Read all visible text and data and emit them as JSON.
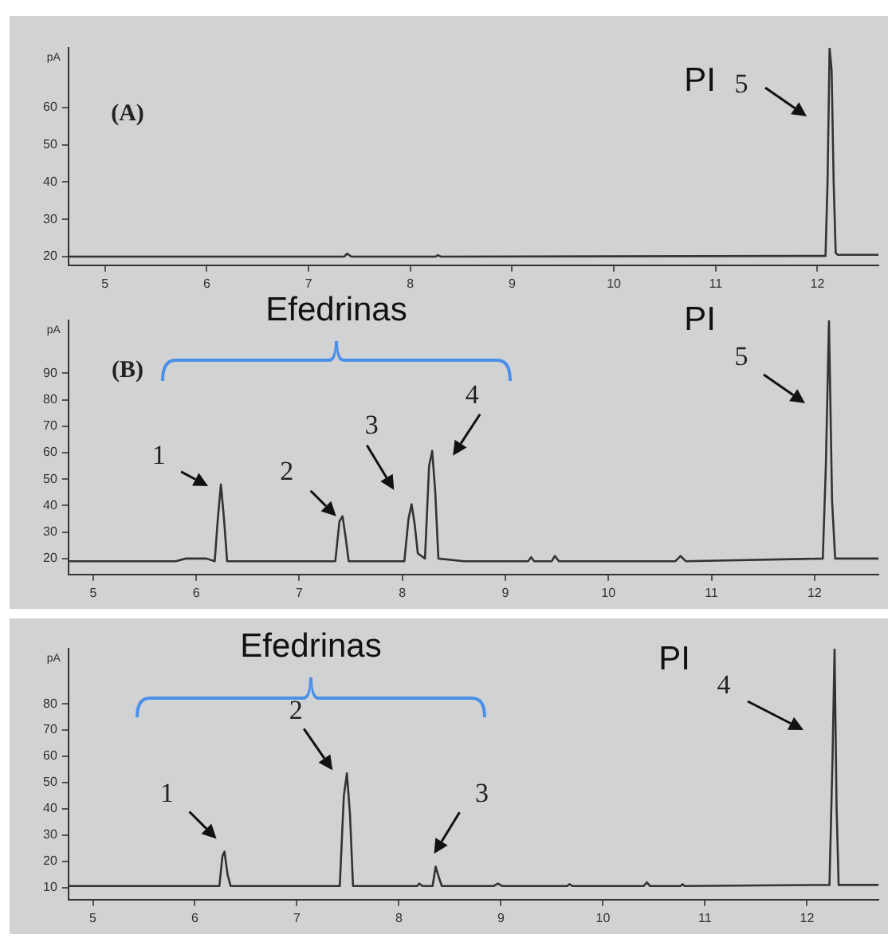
{
  "chart_data": [
    {
      "type": "line",
      "ylabel": "pA",
      "color": "#333333",
      "marker": "none",
      "grid": false,
      "x": [
        4.64,
        7.35,
        7.38,
        7.42,
        8.25,
        8.27,
        8.3,
        12.08,
        12.1,
        12.12,
        12.14,
        12.16,
        12.18,
        12.2,
        12.6
      ],
      "values": [
        20,
        20,
        20.8,
        20,
        20,
        20.4,
        20,
        20.2,
        40,
        76,
        70,
        40,
        21,
        20.5,
        20.5
      ],
      "xlim": [
        4.64,
        12.6
      ],
      "xticks": [
        5,
        6,
        7,
        8,
        9,
        10,
        11,
        12
      ],
      "ylim": [
        17.7,
        76
      ],
      "yticks": [
        20,
        30,
        40,
        50,
        60
      ],
      "annotations": [
        "(A)",
        "PI",
        "5"
      ]
    },
    {
      "type": "line",
      "ylabel": "pA",
      "color": "#333333",
      "marker": "none",
      "grid": false,
      "x": [
        4.76,
        5.8,
        5.9,
        6.1,
        6.18,
        6.21,
        6.24,
        6.27,
        6.3,
        7.35,
        7.39,
        7.42,
        7.45,
        7.48,
        8.02,
        8.06,
        8.09,
        8.12,
        8.15,
        8.22,
        8.26,
        8.29,
        8.32,
        8.35,
        8.6,
        9.22,
        9.25,
        9.28,
        9.45,
        9.48,
        9.52,
        10.65,
        10.7,
        10.75,
        12.08,
        12.11,
        12.14,
        12.17,
        12.2,
        12.62
      ],
      "values": [
        19,
        19,
        20,
        20,
        19,
        35,
        48,
        35,
        19,
        19,
        34,
        36,
        28,
        19,
        19,
        35,
        40.5,
        33,
        22,
        20,
        55,
        60.7,
        45,
        20,
        19,
        19,
        20.5,
        19,
        19,
        21,
        19,
        19,
        21,
        19,
        20,
        55,
        110,
        42,
        20,
        20
      ],
      "xlim": [
        4.76,
        12.62
      ],
      "xticks": [
        5,
        6,
        7,
        8,
        9,
        10,
        11,
        12
      ],
      "ylim": [
        14,
        110
      ],
      "yticks": [
        20,
        30,
        40,
        50,
        60,
        70,
        80,
        90
      ],
      "annotations": [
        "(B)",
        "Efedrinas",
        "PI",
        {
          "text": "1",
          "x": 6.24,
          "y": 48
        },
        {
          "text": "2",
          "x": 7.42,
          "y": 36
        },
        {
          "text": "3",
          "x": 8.09,
          "y": 40.5
        },
        {
          "text": "4",
          "x": 8.29,
          "y": 60.7
        },
        "5"
      ]
    },
    {
      "type": "line",
      "ylabel": "pA",
      "color": "#333333",
      "marker": "none",
      "grid": false,
      "x": [
        4.76,
        6.24,
        6.27,
        6.29,
        6.32,
        6.35,
        7.42,
        7.46,
        7.49,
        7.52,
        7.55,
        8.18,
        8.2,
        8.23,
        8.33,
        8.36,
        8.39,
        8.42,
        8.93,
        8.97,
        9.01,
        9.65,
        9.67,
        9.7,
        10.4,
        10.43,
        10.46,
        10.76,
        10.78,
        10.8,
        12.22,
        12.25,
        12.27,
        12.29,
        12.31,
        12.7
      ],
      "values": [
        10.6,
        10.6,
        22,
        23.7,
        15,
        10.6,
        10.6,
        45,
        53.5,
        38,
        10.6,
        10.6,
        11.5,
        10.6,
        10.6,
        18,
        14,
        10.6,
        10.6,
        11.5,
        10.6,
        10.6,
        11.3,
        10.6,
        10.6,
        12,
        10.6,
        10.6,
        11.3,
        10.6,
        11,
        59,
        101,
        40,
        11,
        11
      ],
      "xlim": [
        4.76,
        12.7
      ],
      "xticks": [
        5,
        6,
        7,
        8,
        9,
        10,
        11,
        12
      ],
      "ylim": [
        5.4,
        101
      ],
      "yticks": [
        10,
        20,
        30,
        40,
        50,
        60,
        70,
        80
      ],
      "annotations": [
        "Efedrinas",
        "PI",
        {
          "text": "1",
          "x": 6.29,
          "y": 23.7
        },
        {
          "text": "2",
          "x": 7.49,
          "y": 53.5
        },
        {
          "text": "3",
          "x": 8.36,
          "y": 18
        },
        "4"
      ]
    }
  ]
}
